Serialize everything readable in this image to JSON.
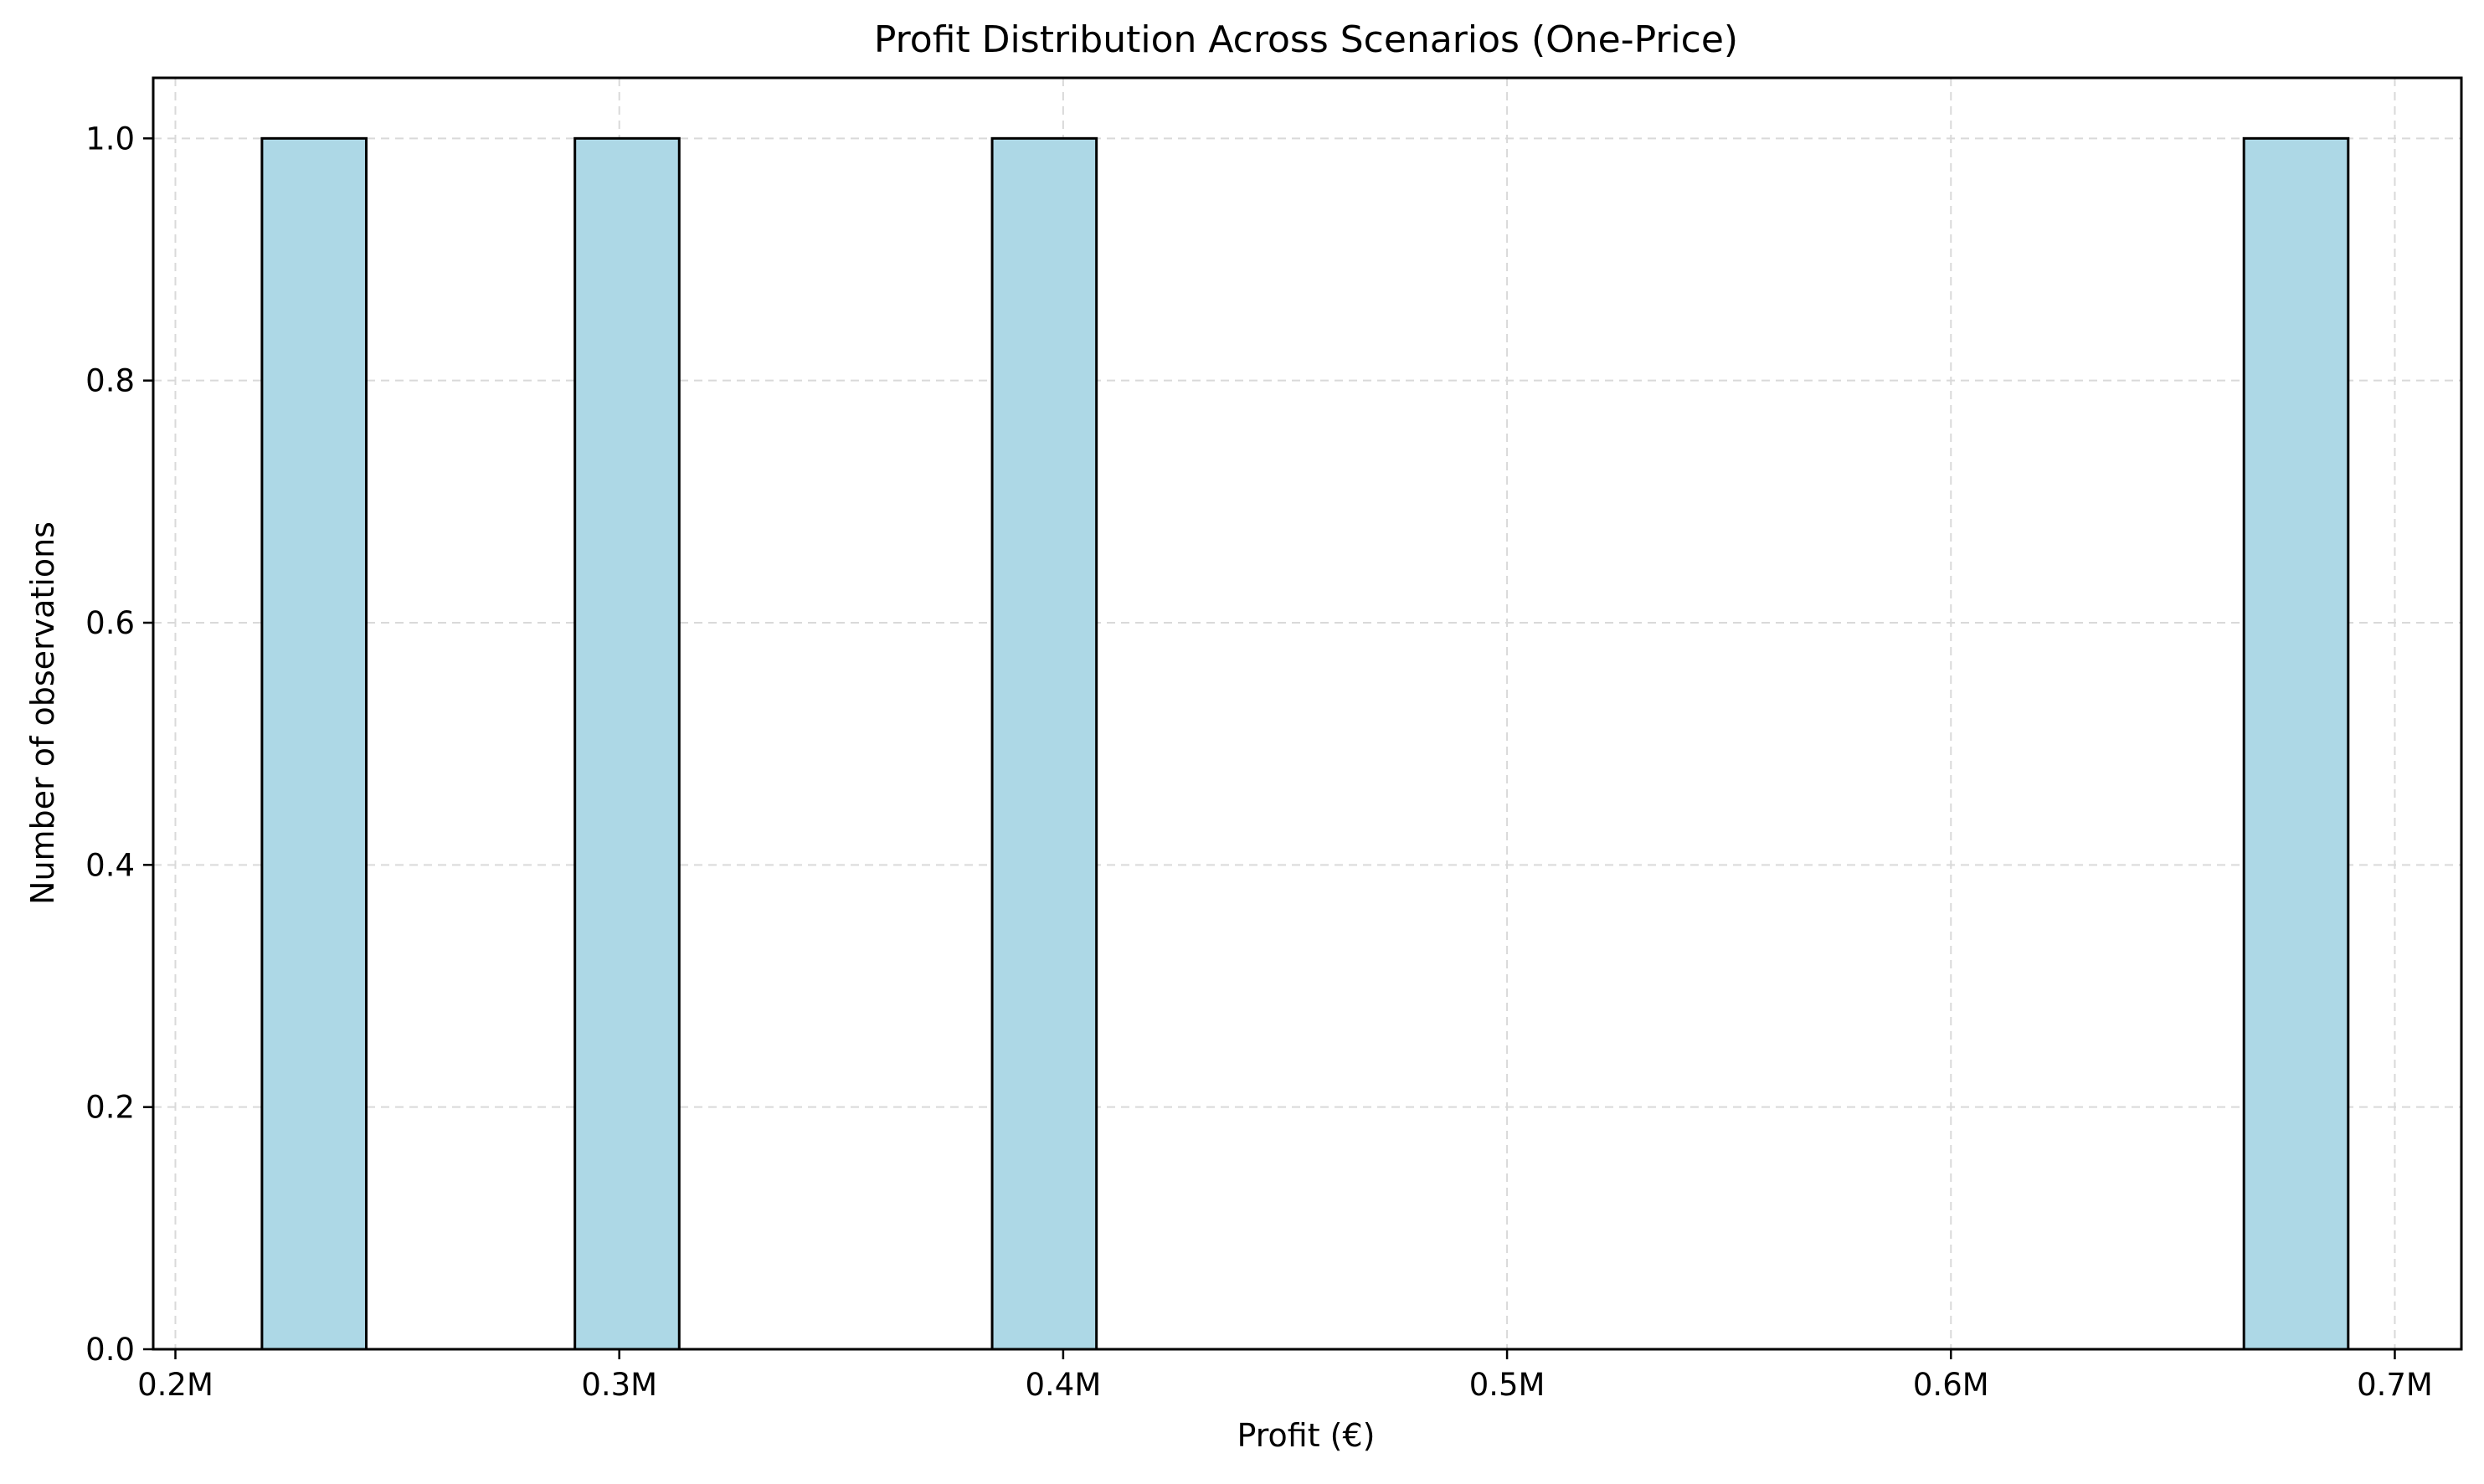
{
  "chart_data": {
    "type": "histogram",
    "title": "Profit Distribution Across Scenarios (One-Price)",
    "xlabel": "Profit (€)",
    "ylabel": "Number of observations",
    "xlim": [
      0.195,
      0.715
    ],
    "ylim": [
      0,
      1.05
    ],
    "x_ticks": [
      {
        "value": 0.2,
        "label": "0.2M"
      },
      {
        "value": 0.3,
        "label": "0.3M"
      },
      {
        "value": 0.4,
        "label": "0.4M"
      },
      {
        "value": 0.5,
        "label": "0.5M"
      },
      {
        "value": 0.6,
        "label": "0.6M"
      },
      {
        "value": 0.7,
        "label": "0.7M"
      }
    ],
    "y_ticks": [
      {
        "value": 0.0,
        "label": "0.0"
      },
      {
        "value": 0.2,
        "label": "0.2"
      },
      {
        "value": 0.4,
        "label": "0.4"
      },
      {
        "value": 0.6,
        "label": "0.6"
      },
      {
        "value": 0.8,
        "label": "0.8"
      },
      {
        "value": 1.0,
        "label": "1.0"
      }
    ],
    "x_unit": "M €",
    "bins": [
      {
        "x0": 0.2195,
        "x1": 0.243,
        "count": 1
      },
      {
        "x0": 0.29,
        "x1": 0.3135,
        "count": 1
      },
      {
        "x0": 0.384,
        "x1": 0.4075,
        "count": 1
      },
      {
        "x0": 0.666,
        "x1": 0.6895,
        "count": 1
      }
    ],
    "bar_color": "#add8e6",
    "edge_color": "#000000",
    "grid": true,
    "grid_style": "dashed",
    "legend": "none"
  }
}
